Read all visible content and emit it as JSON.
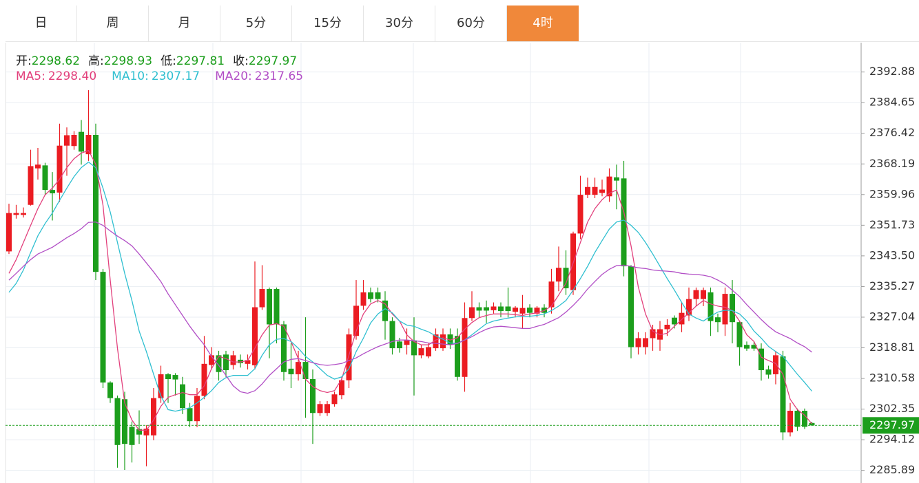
{
  "tabs": [
    {
      "label": "日",
      "active": false
    },
    {
      "label": "周",
      "active": false
    },
    {
      "label": "月",
      "active": false
    },
    {
      "label": "5分",
      "active": false
    },
    {
      "label": "15分",
      "active": false
    },
    {
      "label": "30分",
      "active": false
    },
    {
      "label": "60分",
      "active": false
    },
    {
      "label": "4时",
      "active": true
    }
  ],
  "chart_data": {
    "type": "candlestick",
    "ohlc_names": [
      "开:",
      "高:",
      "低:",
      "收:"
    ],
    "up_color": "#eb1c22",
    "down_color": "#1c9e1c",
    "ylim": [
      2282.5,
      2400.76
    ],
    "yticks": [
      2392.88,
      2384.65,
      2376.42,
      2368.19,
      2359.96,
      2351.73,
      {
        "value": 2343.5,
        "label": "2343.50"
      },
      2335.27,
      2327.04,
      2318.81,
      2310.58,
      2302.35,
      2294.12,
      2285.89
    ],
    "grid": true,
    "open": [
      2344.7,
      2354.5,
      2354.5,
      2357.2,
      2367.0,
      2367.8,
      2361.2,
      2360.5,
      2373.1,
      2373.0,
      2376.8,
      2370.8,
      2376.0,
      2339.2,
      2309.5,
      2305.3,
      2305.0,
      2297.6,
      2297.0,
      2295.3,
      2295.3,
      2305.3,
      2311.7,
      2311.5,
      2309.0,
      2302.6,
      2299.1,
      2305.9,
      2314.2,
      2316.8,
      2317.0,
      2314.2,
      2315.6,
      2314.5,
      2314.1,
      2329.7,
      2334.6,
      2334.6,
      2325.1,
      2313.2,
      2311.7,
      2315.0,
      2310.4,
      2301.3,
      2301.3,
      2303.7,
      2306.1,
      2310.1,
      2322.0,
      2330.1,
      2333.7,
      2333.7,
      2331.5,
      2326.0,
      2320.5,
      2319.6,
      2320.8,
      2316.8,
      2316.5,
      2318.7,
      2318.7,
      2322.4,
      2322.0,
      2311.0,
      2326.8,
      2329.7,
      2329.7,
      2328.9,
      2329.9,
      2329.9,
      2328.5,
      2328.0,
      2329.6,
      2328.0,
      2329.6,
      2329.7,
      2336.6,
      2340.3,
      2334.3,
      2349.5,
      2359.9,
      2359.9,
      2360.4,
      2359.5,
      2364.6,
      2364.3,
      2340.7,
      2319.0,
      2319.0,
      2321.4,
      2321.0,
      2323.8,
      2326.9,
      2325.1,
      2327.5,
      2331.9,
      2331.9,
      2333.7,
      2327.0,
      2325.1,
      2333.3,
      2325.7,
      2319.6,
      2319.6,
      2318.6,
      2313.0,
      2311.7,
      2316.5,
      2296.1,
      2301.9,
      2301.9,
      2298.62
    ],
    "high": [
      2357.5,
      2357.2,
      2356.5,
      2372.0,
      2372.5,
      2368.5,
      2366.0,
      2379.0,
      2378.0,
      2377.0,
      2380.0,
      2388.0,
      2379.0,
      2340.0,
      2309.8,
      2306.0,
      2307.0,
      2299.0,
      2302.0,
      2298.0,
      2308.0,
      2314.0,
      2312.0,
      2312.0,
      2311.0,
      2304.0,
      2308.0,
      2322.0,
      2319.0,
      2318.0,
      2318.0,
      2318.0,
      2317.0,
      2317.0,
      2342.0,
      2341.0,
      2335.0,
      2335.0,
      2326.0,
      2320.0,
      2318.0,
      2327.0,
      2313.0,
      2304.5,
      2304.5,
      2307.0,
      2311.0,
      2324.0,
      2337.0,
      2337.0,
      2335.0,
      2335.0,
      2334.0,
      2327.0,
      2321.5,
      2324.0,
      2327.0,
      2319.5,
      2320.0,
      2324.0,
      2324.0,
      2324.0,
      2324.0,
      2331.0,
      2334.0,
      2331.0,
      2331.5,
      2331.0,
      2331.0,
      2335.0,
      2330.0,
      2333.0,
      2330.5,
      2330.0,
      2330.5,
      2340.0,
      2346.0,
      2345.0,
      2350.0,
      2365.0,
      2364.5,
      2364.5,
      2364.0,
      2367.0,
      2368.0,
      2369.0,
      2341.0,
      2323.0,
      2323.0,
      2325.0,
      2326.0,
      2326.5,
      2327.5,
      2331.0,
      2335.0,
      2335.0,
      2335.0,
      2335.0,
      2328.0,
      2335.0,
      2337.0,
      2326.0,
      2320.5,
      2320.5,
      2320.0,
      2314.0,
      2318.0,
      2318.0,
      2304.0,
      2302.5,
      2302.5,
      2298.93
    ],
    "low": [
      2344.0,
      2353.5,
      2353.8,
      2357.0,
      2364.0,
      2360.0,
      2353.0,
      2358.0,
      2365.0,
      2372.0,
      2368.0,
      2369.0,
      2337.0,
      2308.0,
      2304.0,
      2286.6,
      2286.0,
      2288.0,
      2293.0,
      2287.0,
      2294.0,
      2304.0,
      2304.0,
      2306.0,
      2301.0,
      2297.5,
      2297.5,
      2305.0,
      2313.0,
      2310.0,
      2311.0,
      2313.0,
      2313.5,
      2313.0,
      2313.0,
      2329.0,
      2316.0,
      2320.0,
      2310.0,
      2308.0,
      2310.0,
      2300.0,
      2293.0,
      2300.5,
      2300.5,
      2303.0,
      2305.0,
      2308.0,
      2321.0,
      2329.0,
      2331.0,
      2331.0,
      2321.0,
      2317.0,
      2317.5,
      2317.0,
      2306.0,
      2316.0,
      2316.0,
      2318.0,
      2318.0,
      2318.5,
      2310.0,
      2307.0,
      2326.0,
      2327.0,
      2325.5,
      2328.0,
      2327.0,
      2327.0,
      2327.0,
      2324.0,
      2327.0,
      2327.0,
      2327.0,
      2328.0,
      2334.0,
      2333.0,
      2333.0,
      2348.0,
      2359.0,
      2359.0,
      2359.5,
      2358.0,
      2356.0,
      2338.0,
      2316.0,
      2317.0,
      2317.0,
      2318.0,
      2318.0,
      2322.0,
      2324.0,
      2323.0,
      2326.0,
      2330.0,
      2330.0,
      2322.0,
      2323.0,
      2322.0,
      2320.0,
      2314.0,
      2318.0,
      2318.0,
      2310.0,
      2310.5,
      2309.0,
      2294.0,
      2295.0,
      2296.5,
      2297.0,
      2297.81
    ],
    "close": [
      2355.0,
      2355.0,
      2355.0,
      2367.6,
      2368.0,
      2361.2,
      2360.3,
      2373.1,
      2375.9,
      2376.0,
      2371.5,
      2376.0,
      2339.2,
      2309.5,
      2305.3,
      2292.7,
      2293.0,
      2292.7,
      2295.5,
      2297.1,
      2305.3,
      2311.7,
      2310.4,
      2310.3,
      2302.6,
      2299.1,
      2305.9,
      2314.5,
      2316.8,
      2312.3,
      2312.8,
      2316.8,
      2314.7,
      2315.5,
      2329.7,
      2334.6,
      2325.1,
      2325.1,
      2312.3,
      2311.7,
      2315.0,
      2310.4,
      2301.3,
      2303.7,
      2303.7,
      2306.3,
      2310.1,
      2322.4,
      2330.1,
      2333.7,
      2331.9,
      2331.9,
      2326.0,
      2318.7,
      2318.7,
      2320.8,
      2316.8,
      2318.7,
      2319.0,
      2322.4,
      2322.4,
      2319.6,
      2311.0,
      2326.8,
      2329.7,
      2328.8,
      2328.8,
      2329.9,
      2328.7,
      2328.7,
      2329.6,
      2329.5,
      2328.2,
      2329.6,
      2328.2,
      2336.6,
      2340.3,
      2334.8,
      2349.5,
      2359.9,
      2362.0,
      2362.0,
      2361.3,
      2364.8,
      2363.7,
      2340.7,
      2319.0,
      2321.4,
      2321.4,
      2323.8,
      2323.8,
      2325.0,
      2325.1,
      2328.2,
      2331.9,
      2334.3,
      2334.3,
      2326.0,
      2325.7,
      2333.3,
      2325.7,
      2319.0,
      2318.6,
      2318.6,
      2312.8,
      2311.6,
      2316.8,
      2296.1,
      2301.9,
      2297.6,
      2297.6,
      2297.97
    ],
    "series": [
      {
        "name": "MA5:",
        "color": "#e2407c",
        "values": [
          2338.8,
          2342.5,
          2347.1,
          2351.7,
          2356.2,
          2359.9,
          2361.7,
          2364.1,
          2367.2,
          2369.6,
          2371.1,
          2371.8,
          2368.1,
          2357.1,
          2337.0,
          2318.7,
          2304.0,
          2299.4,
          2296.7,
          2296.7,
          2299.4,
          2303.1,
          2305.5,
          2306.2,
          2306.8,
          2306.2,
          2306.2,
          2308.6,
          2313.2,
          2316.5,
          2315.9,
          2315.0,
          2315.0,
          2315.4,
          2318.7,
          2322.3,
          2324.9,
          2325.3,
          2324.6,
          2320.5,
          2315.9,
          2310.4,
          2308.4,
          2307.3,
          2306.8,
          2307.3,
          2310.4,
          2316.8,
          2323.3,
          2327.9,
          2330.6,
          2331.5,
          2330.6,
          2327.9,
          2326.0,
          2322.3,
          2320.5,
          2319.6,
          2319.6,
          2320.9,
          2321.5,
          2320.9,
          2321.5,
          2323.8,
          2325.6,
          2326.9,
          2327.5,
          2327.9,
          2327.9,
          2327.9,
          2327.7,
          2327.5,
          2327.9,
          2328.2,
          2328.8,
          2330.0,
          2333.0,
          2336.1,
          2341.6,
          2347.1,
          2352.6,
          2356.2,
          2358.6,
          2360.3,
          2361.2,
          2355.3,
          2346.2,
          2335.2,
          2327.9,
          2323.3,
          2322.3,
          2322.7,
          2324.6,
          2326.4,
          2328.2,
          2330.0,
          2331.5,
          2330.6,
          2330.0,
          2329.7,
          2328.8,
          2326.0,
          2322.3,
          2320.5,
          2316.3,
          2315.4,
          2314.6,
          2311.7,
          2305.0,
          2302.2,
          2300.7,
          2298.4
        ],
        "value_labels": [
          null,
          null,
          null,
          null,
          null,
          null,
          null,
          null,
          null,
          null,
          null,
          null,
          null,
          null,
          null,
          null,
          null,
          null,
          null,
          null,
          null,
          null,
          null,
          null,
          null,
          null,
          null,
          null,
          null,
          null,
          null,
          null,
          null,
          null,
          null,
          null,
          null,
          null,
          null,
          null,
          null,
          null,
          null,
          null,
          null,
          null,
          null,
          null,
          null,
          null,
          null,
          null,
          null,
          null,
          null,
          null,
          null,
          null,
          null,
          null,
          null,
          null,
          null,
          null,
          null,
          null,
          null,
          null,
          null,
          null,
          null,
          null,
          null,
          null,
          null,
          null,
          null,
          null,
          null,
          null,
          null,
          null,
          null,
          null,
          null,
          null,
          null,
          null,
          null,
          null,
          null,
          null,
          null,
          null,
          null,
          null,
          null,
          null,
          null,
          null,
          null,
          null,
          null,
          null,
          null,
          null,
          null,
          null,
          null,
          null,
          null,
          "2298.40"
        ]
      },
      {
        "name": "MA10:",
        "color": "#2fbfd0",
        "values": [
          2333.7,
          2336.1,
          2339.7,
          2344.4,
          2348.9,
          2352.2,
          2355.0,
          2358.4,
          2361.7,
          2364.8,
          2367.2,
          2368.7,
          2367.2,
          2361.7,
          2355.3,
          2347.1,
          2338.8,
          2331.5,
          2323.3,
          2317.8,
          2311.7,
          2305.9,
          2302.2,
          2301.8,
          2302.2,
          2302.7,
          2304.0,
          2305.5,
          2307.3,
          2309.5,
          2310.8,
          2311.4,
          2311.4,
          2311.4,
          2313.2,
          2316.8,
          2319.6,
          2321.1,
          2321.3,
          2320.5,
          2318.7,
          2316.5,
          2315.0,
          2313.2,
          2311.4,
          2310.4,
          2311.0,
          2313.2,
          2317.8,
          2321.4,
          2325.5,
          2327.9,
          2329.3,
          2328.2,
          2326.0,
          2324.9,
          2324.6,
          2323.8,
          2323.1,
          2322.0,
          2321.1,
          2320.1,
          2320.0,
          2320.9,
          2322.3,
          2323.8,
          2325.3,
          2326.0,
          2326.4,
          2326.8,
          2327.1,
          2327.3,
          2327.3,
          2327.5,
          2327.9,
          2328.8,
          2330.0,
          2331.5,
          2334.3,
          2337.4,
          2340.7,
          2344.4,
          2347.6,
          2350.7,
          2352.6,
          2353.1,
          2351.7,
          2349.8,
          2347.1,
          2344.0,
          2340.7,
          2337.4,
          2334.3,
          2331.0,
          2327.9,
          2326.8,
          2326.0,
          2327.3,
          2328.4,
          2328.9,
          2328.8,
          2327.9,
          2326.0,
          2323.3,
          2321.4,
          2319.2,
          2317.8,
          2316.5,
          2314.1,
          2311.7,
          2309.5,
          2307.17
        ],
        "value_labels": [
          null,
          null,
          null,
          null,
          null,
          null,
          null,
          null,
          null,
          null,
          null,
          null,
          null,
          null,
          null,
          null,
          null,
          null,
          null,
          null,
          null,
          null,
          null,
          null,
          null,
          null,
          null,
          null,
          null,
          null,
          null,
          null,
          null,
          null,
          null,
          null,
          null,
          null,
          null,
          null,
          null,
          null,
          null,
          null,
          null,
          null,
          null,
          null,
          null,
          null,
          null,
          null,
          null,
          null,
          null,
          null,
          null,
          null,
          null,
          null,
          null,
          null,
          null,
          null,
          null,
          null,
          null,
          null,
          null,
          null,
          null,
          null,
          null,
          null,
          null,
          null,
          null,
          null,
          null,
          null,
          null,
          null,
          null,
          null,
          null,
          null,
          null,
          null,
          null,
          null,
          null,
          null,
          null,
          null,
          null,
          null,
          null,
          null,
          null,
          null,
          null,
          null,
          null,
          null,
          null,
          null,
          null,
          null,
          null,
          null,
          null,
          "2307.17"
        ]
      },
      {
        "name": "MA20:",
        "color": "#b24fc6",
        "values": [
          2337.0,
          2338.8,
          2340.7,
          2342.5,
          2344.0,
          2344.9,
          2345.8,
          2347.1,
          2348.4,
          2349.5,
          2350.8,
          2352.5,
          2352.6,
          2351.7,
          2350.2,
          2348.8,
          2347.6,
          2346.2,
          2344.0,
          2341.6,
          2339.2,
          2336.6,
          2333.3,
          2330.4,
          2327.5,
          2324.6,
          2322.0,
          2319.6,
          2316.5,
          2314.1,
          2311.4,
          2308.6,
          2307.0,
          2306.6,
          2307.3,
          2309.1,
          2311.4,
          2313.2,
          2315.0,
          2315.7,
          2315.9,
          2315.4,
          2314.8,
          2314.3,
          2314.1,
          2314.3,
          2314.6,
          2315.4,
          2316.1,
          2317.2,
          2318.2,
          2319.1,
          2319.8,
          2320.5,
          2320.9,
          2320.9,
          2320.7,
          2320.5,
          2320.1,
          2320.0,
          2319.8,
          2319.6,
          2320.0,
          2320.9,
          2321.8,
          2322.9,
          2323.8,
          2324.4,
          2324.6,
          2324.4,
          2324.2,
          2324.0,
          2324.0,
          2324.6,
          2325.1,
          2326.0,
          2326.9,
          2328.4,
          2330.2,
          2332.2,
          2334.6,
          2336.6,
          2338.5,
          2339.9,
          2340.9,
          2341.0,
          2340.7,
          2340.3,
          2340.1,
          2339.7,
          2339.5,
          2339.4,
          2339.2,
          2338.8,
          2338.6,
          2338.5,
          2338.3,
          2337.9,
          2337.0,
          2335.9,
          2334.3,
          2332.6,
          2330.4,
          2328.4,
          2326.4,
          2324.6,
          2323.1,
          2322.2,
          2321.3,
          2320.1,
          2319.1,
          2317.65
        ],
        "value_labels": [
          null,
          null,
          null,
          null,
          null,
          null,
          null,
          null,
          null,
          null,
          null,
          null,
          null,
          null,
          null,
          null,
          null,
          null,
          null,
          null,
          null,
          null,
          null,
          null,
          null,
          null,
          null,
          null,
          null,
          null,
          null,
          null,
          null,
          null,
          null,
          null,
          null,
          null,
          null,
          null,
          null,
          null,
          null,
          null,
          null,
          null,
          null,
          null,
          null,
          null,
          null,
          null,
          null,
          null,
          null,
          null,
          null,
          null,
          null,
          null,
          null,
          null,
          null,
          null,
          null,
          null,
          null,
          null,
          null,
          null,
          null,
          null,
          null,
          null,
          null,
          null,
          null,
          null,
          null,
          null,
          null,
          null,
          null,
          null,
          null,
          null,
          null,
          null,
          null,
          null,
          null,
          null,
          null,
          null,
          null,
          null,
          null,
          null,
          null,
          null,
          null,
          null,
          null,
          null,
          null,
          null,
          null,
          null,
          null,
          null,
          null,
          "2317.65"
        ]
      }
    ]
  }
}
